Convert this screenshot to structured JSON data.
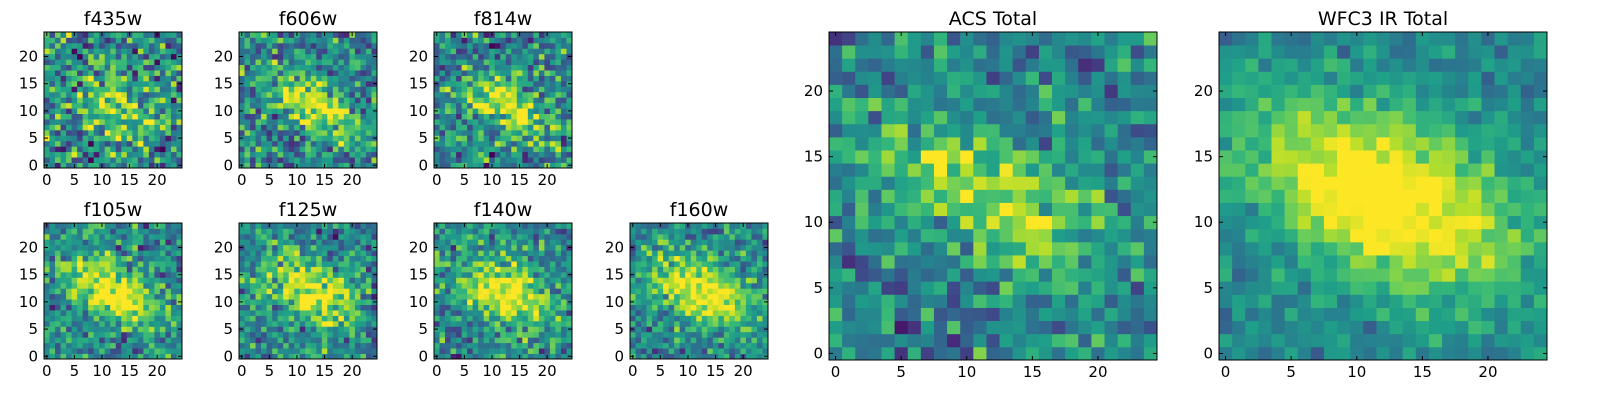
{
  "chart_data": [
    {
      "type": "heatmap",
      "title": "f435w",
      "xlabel": "",
      "ylabel": "",
      "xlim": [
        -0.5,
        24.5
      ],
      "ylim": [
        -0.5,
        24.5
      ],
      "xticks": [
        "0",
        "5",
        "10",
        "15",
        "20"
      ],
      "yticks": [
        "0",
        "5",
        "10",
        "15",
        "20"
      ],
      "grid": false,
      "colormap": "viridis",
      "feature": {
        "peak_x": 12,
        "peak_y": 12,
        "sigma_major": 7.0,
        "sigma_minor": 4.5,
        "angle_deg": -20,
        "amplitude": 0.35,
        "noise": 0.34
      }
    },
    {
      "type": "heatmap",
      "title": "f606w",
      "xlabel": "",
      "ylabel": "",
      "xlim": [
        -0.5,
        24.5
      ],
      "ylim": [
        -0.5,
        24.5
      ],
      "xticks": [
        "0",
        "5",
        "10",
        "15",
        "20"
      ],
      "yticks": [
        "0",
        "5",
        "10",
        "15",
        "20"
      ],
      "grid": false,
      "colormap": "viridis",
      "feature": {
        "peak_x": 13,
        "peak_y": 11,
        "sigma_major": 6.0,
        "sigma_minor": 2.6,
        "angle_deg": -30,
        "amplitude": 0.55,
        "noise": 0.28
      }
    },
    {
      "type": "heatmap",
      "title": "f814w",
      "xlabel": "",
      "ylabel": "",
      "xlim": [
        -0.5,
        24.5
      ],
      "ylim": [
        -0.5,
        24.5
      ],
      "xticks": [
        "0",
        "5",
        "10",
        "15",
        "20"
      ],
      "yticks": [
        "0",
        "5",
        "10",
        "15",
        "20"
      ],
      "grid": false,
      "colormap": "viridis",
      "feature": {
        "peak_x": 12,
        "peak_y": 11,
        "sigma_major": 6.0,
        "sigma_minor": 3.0,
        "angle_deg": -30,
        "amplitude": 0.5,
        "noise": 0.3
      }
    },
    {
      "type": "heatmap",
      "title": "f105w",
      "xlabel": "",
      "ylabel": "",
      "xlim": [
        -0.5,
        24.5
      ],
      "ylim": [
        -0.5,
        24.5
      ],
      "xticks": [
        "0",
        "5",
        "10",
        "15",
        "20"
      ],
      "yticks": [
        "0",
        "5",
        "10",
        "15",
        "20"
      ],
      "grid": false,
      "colormap": "viridis",
      "feature": {
        "peak_x": 12,
        "peak_y": 12,
        "sigma_major": 6.5,
        "sigma_minor": 3.5,
        "angle_deg": -28,
        "amplitude": 0.6,
        "noise": 0.24
      }
    },
    {
      "type": "heatmap",
      "title": "f125w",
      "xlabel": "",
      "ylabel": "",
      "xlim": [
        -0.5,
        24.5
      ],
      "ylim": [
        -0.5,
        24.5
      ],
      "xticks": [
        "0",
        "5",
        "10",
        "15",
        "20"
      ],
      "yticks": [
        "0",
        "5",
        "10",
        "15",
        "20"
      ],
      "grid": false,
      "colormap": "viridis",
      "feature": {
        "peak_x": 12,
        "peak_y": 12,
        "sigma_major": 6.5,
        "sigma_minor": 3.6,
        "angle_deg": -25,
        "amplitude": 0.55,
        "noise": 0.26
      }
    },
    {
      "type": "heatmap",
      "title": "f140w",
      "xlabel": "",
      "ylabel": "",
      "xlim": [
        -0.5,
        24.5
      ],
      "ylim": [
        -0.5,
        24.5
      ],
      "xticks": [
        "0",
        "5",
        "10",
        "15",
        "20"
      ],
      "yticks": [
        "0",
        "5",
        "10",
        "15",
        "20"
      ],
      "grid": false,
      "colormap": "viridis",
      "feature": {
        "peak_x": 12,
        "peak_y": 12,
        "sigma_major": 6.5,
        "sigma_minor": 3.6,
        "angle_deg": -28,
        "amplitude": 0.6,
        "noise": 0.24
      }
    },
    {
      "type": "heatmap",
      "title": "f160w",
      "xlabel": "",
      "ylabel": "",
      "xlim": [
        -0.5,
        24.5
      ],
      "ylim": [
        -0.5,
        24.5
      ],
      "xticks": [
        "0",
        "5",
        "10",
        "15",
        "20"
      ],
      "yticks": [
        "0",
        "5",
        "10",
        "15",
        "20"
      ],
      "grid": false,
      "colormap": "viridis",
      "feature": {
        "peak_x": 12,
        "peak_y": 12,
        "sigma_major": 6.5,
        "sigma_minor": 3.8,
        "angle_deg": -28,
        "amplitude": 0.6,
        "noise": 0.22
      }
    },
    {
      "type": "heatmap",
      "title": "ACS Total",
      "xlabel": "",
      "ylabel": "",
      "xlim": [
        -0.5,
        24.5
      ],
      "ylim": [
        -0.5,
        24.5
      ],
      "xticks": [
        "0",
        "5",
        "10",
        "15",
        "20"
      ],
      "yticks": [
        "0",
        "5",
        "10",
        "15",
        "20"
      ],
      "grid": false,
      "colormap": "viridis",
      "feature": {
        "peak_x": 12,
        "peak_y": 12,
        "sigma_major": 7.0,
        "sigma_minor": 2.8,
        "angle_deg": -22,
        "amplitude": 0.45,
        "noise": 0.22
      }
    },
    {
      "type": "heatmap",
      "title": "WFC3 IR Total",
      "xlabel": "",
      "ylabel": "",
      "xlim": [
        -0.5,
        24.5
      ],
      "ylim": [
        -0.5,
        24.5
      ],
      "xticks": [
        "0",
        "5",
        "10",
        "15",
        "20"
      ],
      "yticks": [
        "0",
        "5",
        "10",
        "15",
        "20"
      ],
      "grid": false,
      "colormap": "viridis",
      "feature": {
        "peak_x": 12,
        "peak_y": 12,
        "sigma_major": 7.5,
        "sigma_minor": 4.2,
        "angle_deg": -25,
        "amplitude": 0.7,
        "noise": 0.12
      }
    }
  ],
  "colors": {
    "viridis": [
      "#440154",
      "#482878",
      "#3e4989",
      "#31688e",
      "#26828e",
      "#1f9e89",
      "#35b779",
      "#6ece58",
      "#b5de2b",
      "#fde725"
    ]
  }
}
